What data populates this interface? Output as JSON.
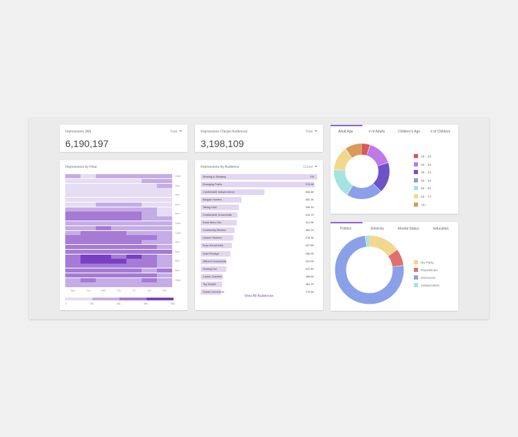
{
  "kpis": [
    {
      "title": "Impressions (All)",
      "dropdown": "Total",
      "value": "6,190,197"
    },
    {
      "title": "Impressions (Target Audience)",
      "dropdown": "Total",
      "value": "3,198,109"
    }
  ],
  "heatmap": {
    "title": "Impressions by Hour",
    "days": [
      "Mon",
      "Tue",
      "Wed",
      "Thu",
      "Fri",
      "Sat",
      "Sun"
    ],
    "hours": [
      "12am",
      "2am",
      "4am",
      "6am",
      "8am",
      "10am",
      "12pm",
      "2pm",
      "4pm",
      "6pm",
      "8pm",
      "10pm"
    ],
    "levels": [
      [
        2,
        1,
        2,
        2,
        2,
        2,
        2
      ],
      [
        1,
        1,
        1,
        1,
        1,
        2,
        2
      ],
      [
        1,
        1,
        1,
        1,
        1,
        1,
        2
      ],
      [
        1,
        1,
        1,
        1,
        1,
        1,
        1
      ],
      [
        1,
        1,
        1,
        1,
        1,
        1,
        1
      ],
      [
        1,
        1,
        1,
        1,
        1,
        1,
        1
      ],
      [
        1,
        1,
        2,
        2,
        2,
        1,
        1
      ],
      [
        2,
        2,
        2,
        2,
        2,
        2,
        1
      ],
      [
        3,
        3,
        3,
        3,
        3,
        2,
        1
      ],
      [
        3,
        3,
        3,
        3,
        3,
        2,
        2
      ],
      [
        2,
        2,
        2,
        2,
        2,
        2,
        2
      ],
      [
        2,
        2,
        3,
        2,
        2,
        2,
        2
      ],
      [
        2,
        3,
        3,
        3,
        2,
        2,
        2
      ],
      [
        3,
        3,
        3,
        3,
        3,
        3,
        2
      ],
      [
        3,
        3,
        3,
        3,
        3,
        2,
        2
      ],
      [
        3,
        3,
        3,
        3,
        3,
        3,
        2
      ],
      [
        3,
        3,
        3,
        3,
        3,
        3,
        3
      ],
      [
        3,
        4,
        4,
        3,
        4,
        3,
        2
      ],
      [
        3,
        4,
        4,
        4,
        3,
        3,
        2
      ],
      [
        3,
        3,
        3,
        3,
        3,
        3,
        2
      ],
      [
        3,
        3,
        3,
        3,
        3,
        2,
        3
      ],
      [
        3,
        3,
        3,
        3,
        3,
        3,
        2
      ],
      [
        2,
        3,
        2,
        2,
        2,
        3,
        2
      ],
      [
        2,
        2,
        2,
        2,
        2,
        2,
        2
      ]
    ],
    "scale_ticks": [
      "0",
      "20k",
      "40k",
      "60k",
      "80k"
    ],
    "colors": [
      "#ffffff",
      "#e6dcf4",
      "#c5ace6",
      "#a57bd6",
      "#7a40c3"
    ]
  },
  "audiences": {
    "title": "Impressions by Audience",
    "dropdown": "Count",
    "footer": "View All Audiences",
    "max_value": 1000000,
    "items": [
      {
        "name": "Working & Studying",
        "value": 1000000,
        "label": "1M"
      },
      {
        "name": "Emerging Public",
        "value": 976900,
        "label": "976.9K"
      },
      {
        "name": "Comfortable Independence",
        "value": 548300,
        "label": "548.3K"
      },
      {
        "name": "Bargain Hunters",
        "value": 352200,
        "label": "352.2K"
      },
      {
        "name": "Taking Hold",
        "value": 326100,
        "label": "326.1K"
      },
      {
        "name": "Comfortable Households",
        "value": 314700,
        "label": "314.7K"
      },
      {
        "name": "Rural Metro Mix",
        "value": 311900,
        "label": "311.9K"
      },
      {
        "name": "Community Minded",
        "value": 289700,
        "label": "289.7K"
      },
      {
        "name": "Leisure Seekers",
        "value": 278300,
        "label": "278.3K"
      },
      {
        "name": "Busy Households",
        "value": 267800,
        "label": "267.8K"
      },
      {
        "name": "Solid Prestige",
        "value": 256900,
        "label": "256.9K"
      },
      {
        "name": "Affluent Households",
        "value": 222900,
        "label": "222.9K"
      },
      {
        "name": "Starting Out",
        "value": 222400,
        "label": "222.4K"
      },
      {
        "name": "Career Oriented",
        "value": 189600,
        "label": "189.6K"
      },
      {
        "name": "Top Wealth",
        "value": 181700,
        "label": "181.7K"
      },
      {
        "name": "Social Connectors",
        "value": 170600,
        "label": "170.6K"
      }
    ]
  },
  "age_card": {
    "tabs": [
      "Adult Age",
      "# of Adults",
      "Children's Age",
      "# of Children"
    ],
    "active_tab": 0,
    "segments": [
      {
        "label": "18 - 24",
        "value": 5,
        "color": "#d95a5a"
      },
      {
        "label": "25 - 34",
        "value": 15,
        "color": "#bf79e8"
      },
      {
        "label": "35 - 44",
        "value": 18,
        "color": "#6c53c6"
      },
      {
        "label": "45 - 54",
        "value": 21,
        "color": "#8aa0e8"
      },
      {
        "label": "55 - 64",
        "value": 17,
        "color": "#a5e3e0"
      },
      {
        "label": "65 - 74",
        "value": 14,
        "color": "#f2d88e"
      },
      {
        "label": "75+",
        "value": 10,
        "color": "#d99a56"
      }
    ]
  },
  "politics_card": {
    "tabs": [
      "Politics",
      "Ethnicity",
      "Marital Status",
      "Education"
    ],
    "active_tab": 0,
    "segments": [
      {
        "label": "No Party",
        "value": 15,
        "color": "#f2d88e"
      },
      {
        "label": "Republican",
        "value": 8,
        "color": "#e0706f"
      },
      {
        "label": "Democrat",
        "value": 75,
        "color": "#8aa0e8"
      },
      {
        "label": "Independent",
        "value": 2,
        "color": "#a5e3e0"
      }
    ]
  }
}
